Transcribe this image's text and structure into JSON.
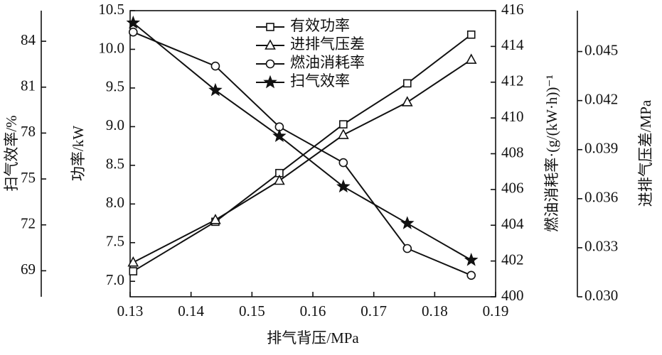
{
  "chart_data": {
    "type": "line",
    "xlabel": "排气背压/MPa",
    "x": [
      0.1305,
      0.144,
      0.1545,
      0.165,
      0.1755,
      0.186
    ],
    "xlim": [
      0.13,
      0.19
    ],
    "xticks": [
      0.13,
      0.14,
      0.15,
      0.16,
      0.17,
      0.18,
      0.19
    ],
    "ylabel": "功率/kW",
    "ylim": [
      6.8,
      10.5
    ],
    "yticks": [
      {
        "value": 7,
        "label": "7.0"
      },
      7.5,
      {
        "value": 8,
        "label": "8.0"
      },
      8.5,
      {
        "value": 9,
        "label": "9.0"
      },
      9.5,
      {
        "value": 10,
        "label": "10.0"
      },
      10.5
    ],
    "y2label": "燃油消耗率·(g/(kW·h))⁻¹",
    "y2lim": [
      400,
      416
    ],
    "y2ticks": [
      400,
      402,
      404,
      406,
      408,
      410,
      412,
      414,
      416
    ],
    "y3label": "扫气效率/%",
    "y3lim": [
      67.3,
      86
    ],
    "y3ticks": [
      69,
      72,
      75,
      78,
      81,
      84
    ],
    "y4label": "进排气压差/MPa",
    "y4lim": [
      0.03,
      0.0475
    ],
    "y4ticks": [
      {
        "value": 0.03,
        "label": "0.030"
      },
      0.033,
      0.036,
      0.039,
      0.042,
      0.045
    ],
    "series": [
      {
        "name": "有效功率",
        "color": "#111111",
        "marker": "square",
        "axis": "y",
        "values": [
          7.13,
          7.77,
          8.4,
          9.03,
          9.56,
          10.19
        ]
      },
      {
        "name": "进排气压差",
        "color": "#111111",
        "marker": "triangle",
        "axis": "y4",
        "values": [
          0.0321,
          0.0347,
          0.0371,
          0.0399,
          0.0419,
          0.0445
        ]
      },
      {
        "name": "燃油消耗率",
        "color": "#111111",
        "marker": "circle",
        "axis": "y2",
        "values": [
          414.8,
          412.9,
          409.5,
          407.5,
          402.7,
          401.2
        ]
      },
      {
        "name": "扫气效率",
        "color": "#111111",
        "marker": "star",
        "axis": "y3",
        "values": [
          85.2,
          80.8,
          77.8,
          74.5,
          72.1,
          69.7
        ]
      }
    ]
  }
}
